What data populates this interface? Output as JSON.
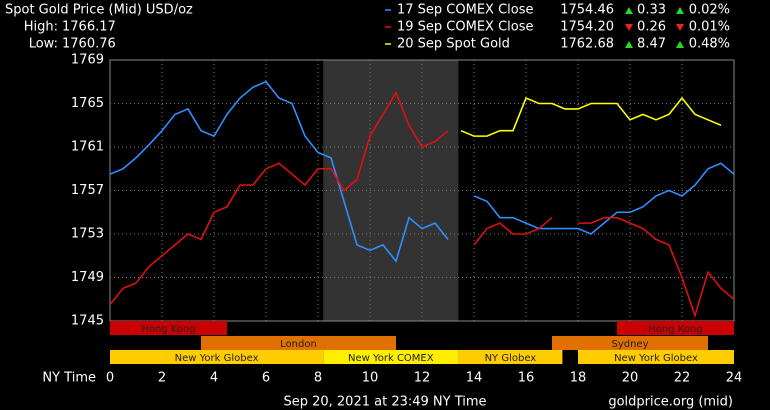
{
  "chart_data": {
    "type": "line",
    "title": "Spot Gold Price (Mid) USD/oz",
    "high_label": "High:",
    "high": 1766.17,
    "low_label": "Low:",
    "low": 1760.76,
    "xlabel": "NY Time",
    "footer": "Sep 20, 2021 at 23:49 NY Time",
    "source": "goldprice.org (mid)",
    "x": [
      0,
      0.5,
      1,
      1.5,
      2,
      2.5,
      3,
      3.5,
      4,
      4.5,
      5,
      5.5,
      6,
      6.5,
      7,
      7.5,
      8,
      8.5,
      9,
      9.5,
      10,
      10.5,
      11,
      11.5,
      12,
      12.5,
      13,
      13.5,
      14,
      14.5,
      15,
      15.5,
      16,
      16.5,
      17,
      17.5,
      18,
      18.5,
      19,
      19.5,
      20,
      20.5,
      21,
      21.5,
      22,
      22.5,
      23,
      23.5,
      24
    ],
    "xlim": [
      0,
      24
    ],
    "xticks": [
      0,
      2,
      4,
      6,
      8,
      10,
      12,
      14,
      16,
      18,
      20,
      22,
      24
    ],
    "ylim": [
      1745,
      1769
    ],
    "yticks": [
      1745,
      1749,
      1753,
      1757,
      1761,
      1765,
      1769
    ],
    "grid": true,
    "series": [
      {
        "name": "17 Sep COMEX Close",
        "color": "#2e8fff",
        "close": 1754.46,
        "change": 0.33,
        "change_pct": {
          "value": 0.02,
          "label": "0.02%"
        },
        "values": [
          1758.5,
          1759,
          1760,
          1761.2,
          1762.5,
          1764,
          1764.5,
          1762.5,
          1762,
          1764,
          1765.5,
          1766.5,
          1767,
          1765.5,
          1765,
          1762,
          1760.5,
          1760,
          1756,
          1752,
          1751.5,
          1752,
          1750.5,
          1754.5,
          1753.5,
          1754,
          1752.5,
          null,
          1756.5,
          1756,
          1754.5,
          1754.5,
          1754,
          1753.5,
          1753.5,
          1753.5,
          1753.5,
          1753,
          1754,
          1755,
          1755,
          1755.5,
          1756.5,
          1757,
          1756.5,
          1757.5,
          1759,
          1759.5,
          1758.5
        ]
      },
      {
        "name": "19 Sep COMEX Close",
        "color": "#e01010",
        "close": {
          "value": 1754.2,
          "label": "1754.20"
        },
        "change": {
          "value": -0.26,
          "label": "0.26"
        },
        "change_pct": {
          "value": -0.01,
          "label": "0.01%"
        },
        "values": [
          1746.5,
          1748,
          1748.5,
          1750,
          1751,
          1752,
          1753,
          1752.5,
          1755,
          1755.5,
          1757.5,
          1757.5,
          1759,
          1759.5,
          1758.5,
          1757.5,
          1759,
          1759,
          1757,
          1758,
          1762,
          1764,
          1766,
          1763,
          1761,
          1761.5,
          1762.5,
          null,
          1752,
          1753.5,
          1754,
          1753,
          1753,
          1753.5,
          1754.5,
          null,
          1754,
          1754,
          1754.5,
          1754.5,
          1754,
          1753.5,
          1752.5,
          1752,
          1749,
          1745.5,
          1749.5,
          1748,
          1747
        ]
      },
      {
        "name": "20 Sep Spot Gold",
        "color": "#ffff00",
        "close": 1762.68,
        "change": 8.47,
        "change_pct": {
          "value": 0.48,
          "label": "0.48%"
        },
        "values": [
          null,
          null,
          null,
          null,
          null,
          null,
          null,
          null,
          null,
          null,
          null,
          null,
          null,
          null,
          null,
          null,
          null,
          null,
          null,
          null,
          null,
          null,
          null,
          null,
          null,
          null,
          null,
          1762.5,
          1762,
          1762,
          1762.5,
          1762.5,
          1765.5,
          1765,
          1765,
          1764.5,
          1764.5,
          1765,
          1765,
          1765,
          1763.5,
          1764,
          1763.5,
          1764,
          1765.5,
          1764,
          1763.5,
          1763,
          null
        ]
      }
    ],
    "sessions": [
      {
        "name": "Hong Kong",
        "start": 0,
        "end": 4.5,
        "row": 0,
        "color": "#cc0000"
      },
      {
        "name": "Hong Kong",
        "start": 19.5,
        "end": 24,
        "row": 0,
        "color": "#cc0000"
      },
      {
        "name": "London",
        "start": 3.5,
        "end": 11,
        "row": 1,
        "color": "#e07000"
      },
      {
        "name": "Sydney",
        "start": 17,
        "end": 23,
        "row": 1,
        "color": "#e07000"
      },
      {
        "name": "New York Globex",
        "start": 0,
        "end": 8.2,
        "row": 2,
        "color": "#ffcc00"
      },
      {
        "name": "New York COMEX",
        "start": 8.2,
        "end": 13.4,
        "row": 2,
        "color": "#ffee00",
        "shade": true
      },
      {
        "name": "NY Globex",
        "start": 13.4,
        "end": 17.4,
        "row": 2,
        "color": "#ffcc00"
      },
      {
        "name": "New York Globex",
        "start": 18,
        "end": 24,
        "row": 2,
        "color": "#ffcc00"
      }
    ]
  }
}
